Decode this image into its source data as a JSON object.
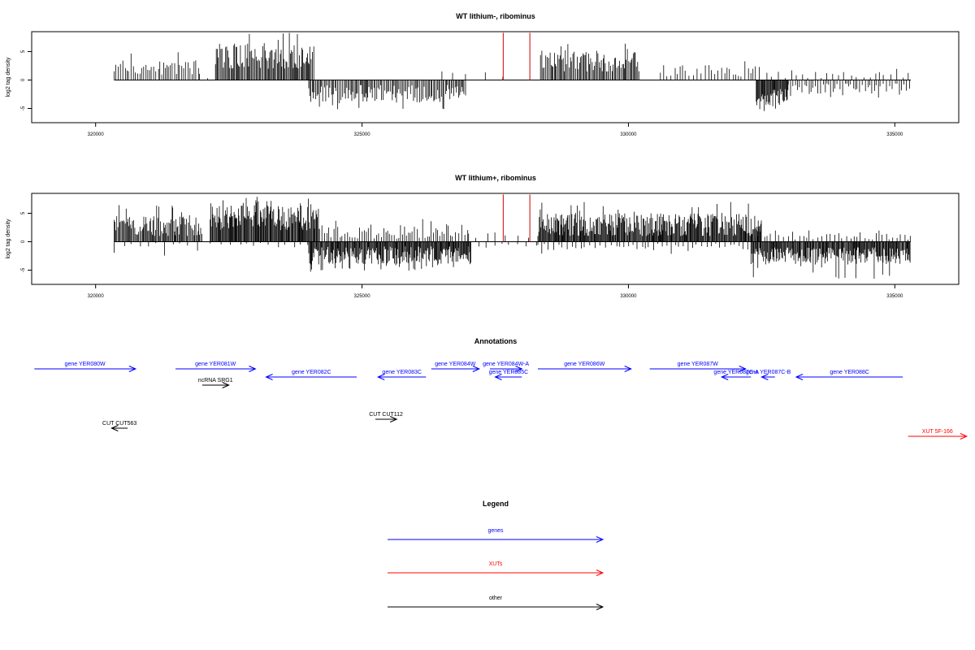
{
  "colors": {
    "gene": "#0000ff",
    "xut": "#ff0000",
    "other": "#000000",
    "signal": "#000000",
    "marker": "#cc0000"
  },
  "chart_data": [
    {
      "type": "bar",
      "title": "WT lithium-, ribominus",
      "ylabel": "log2 tag density",
      "xlim": [
        318800,
        336200
      ],
      "ylim": [
        -7.5,
        8.5
      ],
      "xticks": [
        320000,
        325000,
        330000,
        335000
      ],
      "yticks": [
        -5,
        0,
        5
      ],
      "segments": [
        {
          "from": 320350,
          "to": 321950,
          "sign": 1,
          "step": 38,
          "min": 0.8,
          "max": 3.5,
          "peak": 5.8
        },
        {
          "from": 321950,
          "to": 322200,
          "sign": 1,
          "step": 120,
          "min": 0.3,
          "max": 1.2,
          "peak": 1.2
        },
        {
          "from": 322250,
          "to": 324100,
          "sign": 1,
          "step": 20,
          "min": 2.0,
          "max": 6.5,
          "peak": 8.3
        },
        {
          "from": 324000,
          "to": 326950,
          "sign": -1,
          "step": 25,
          "min": 0.8,
          "max": 4.0,
          "peak": 5.2
        },
        {
          "from": 326500,
          "to": 327700,
          "sign": 1,
          "step": 300,
          "min": 0.3,
          "max": 1.5,
          "peak": 1.5
        },
        {
          "from": 328350,
          "to": 330200,
          "sign": 1,
          "step": 22,
          "min": 1.5,
          "max": 5.0,
          "peak": 6.5
        },
        {
          "from": 330600,
          "to": 332500,
          "sign": 1,
          "step": 60,
          "min": 0.5,
          "max": 2.8,
          "peak": 3.6
        },
        {
          "from": 332400,
          "to": 333000,
          "sign": -1,
          "step": 15,
          "min": 1.5,
          "max": 4.5,
          "peak": 5.6
        },
        {
          "from": 333000,
          "to": 335300,
          "sign": -1,
          "step": 45,
          "min": 0.5,
          "max": 2.5,
          "peak": 3.2
        },
        {
          "from": 332600,
          "to": 335300,
          "sign": 1,
          "step": 110,
          "min": 0.3,
          "max": 1.5,
          "peak": 2.0
        }
      ],
      "markers": [
        327650,
        328150
      ],
      "marker_height": 8.3
    },
    {
      "type": "bar",
      "title": "WT lithium+, ribominus",
      "ylabel": "log2 tag density",
      "xlim": [
        318800,
        336200
      ],
      "ylim": [
        -7.5,
        8.5
      ],
      "xticks": [
        320000,
        325000,
        330000,
        335000
      ],
      "yticks": [
        -5,
        0,
        5
      ],
      "segments": [
        {
          "from": 320350,
          "to": 322000,
          "sign": 1,
          "step": 18,
          "min": 1.0,
          "max": 4.5,
          "peak": 6.5
        },
        {
          "from": 320350,
          "to": 322000,
          "sign": -1,
          "step": 140,
          "min": 0.2,
          "max": 1.0,
          "peak": 2.5
        },
        {
          "from": 322150,
          "to": 324200,
          "sign": 1,
          "step": 14,
          "min": 2.0,
          "max": 6.5,
          "peak": 8.2
        },
        {
          "from": 322150,
          "to": 324200,
          "sign": -1,
          "step": 150,
          "min": 0.2,
          "max": 1.0,
          "peak": 2.4
        },
        {
          "from": 324000,
          "to": 327050,
          "sign": -1,
          "step": 14,
          "min": 0.8,
          "max": 4.0,
          "peak": 5.3
        },
        {
          "from": 324200,
          "to": 327000,
          "sign": 1,
          "step": 45,
          "min": 0.5,
          "max": 3.0,
          "peak": 4.0
        },
        {
          "from": 327000,
          "to": 328200,
          "sign": 1,
          "step": 200,
          "min": 0.3,
          "max": 1.5,
          "peak": 2.2
        },
        {
          "from": 327000,
          "to": 328300,
          "sign": -1,
          "step": 180,
          "min": 0.2,
          "max": 1.0,
          "peak": 1.3
        },
        {
          "from": 328300,
          "to": 332500,
          "sign": 1,
          "step": 14,
          "min": 1.0,
          "max": 5.0,
          "peak": 7.0
        },
        {
          "from": 328300,
          "to": 332300,
          "sign": -1,
          "step": 80,
          "min": 0.3,
          "max": 1.5,
          "peak": 2.4
        },
        {
          "from": 332300,
          "to": 335300,
          "sign": -1,
          "step": 14,
          "min": 1.0,
          "max": 4.0,
          "peak": 6.8
        },
        {
          "from": 332300,
          "to": 335300,
          "sign": 1,
          "step": 70,
          "min": 0.3,
          "max": 1.5,
          "peak": 2.0
        }
      ],
      "markers": [
        327650,
        328150
      ],
      "marker_height": 8.3
    },
    {
      "type": "annotation-track",
      "title": "Annotations",
      "features": [
        {
          "label": "gene YER080W",
          "start": 318850,
          "end": 320750,
          "strand": "+",
          "row": 0,
          "kind": "gene"
        },
        {
          "label": "gene YER081W",
          "start": 321500,
          "end": 323000,
          "strand": "+",
          "row": 0,
          "kind": "gene"
        },
        {
          "label": "gene YER082C",
          "start": 323200,
          "end": 324900,
          "strand": "-",
          "row": 1,
          "kind": "gene"
        },
        {
          "label": "gene YER083C",
          "start": 325300,
          "end": 326200,
          "strand": "-",
          "row": 1,
          "kind": "gene"
        },
        {
          "label": "gene YER084W",
          "start": 326300,
          "end": 327200,
          "strand": "+",
          "row": 0,
          "kind": "gene"
        },
        {
          "label": "gene YER084W-A",
          "start": 327400,
          "end": 328000,
          "strand": "+",
          "row": 0,
          "kind": "gene"
        },
        {
          "label": "gene YER085C",
          "start": 327500,
          "end": 328000,
          "strand": "-",
          "row": 1,
          "kind": "gene"
        },
        {
          "label": "gene YER086W",
          "start": 328300,
          "end": 330050,
          "strand": "+",
          "row": 0,
          "kind": "gene"
        },
        {
          "label": "gene YER087W",
          "start": 330400,
          "end": 332200,
          "strand": "+",
          "row": 0,
          "kind": "gene"
        },
        {
          "label": "gene YER087C-A",
          "start": 331750,
          "end": 332300,
          "strand": "-",
          "row": 1,
          "kind": "gene"
        },
        {
          "label": "gene YER087C-B",
          "start": 332500,
          "end": 332750,
          "strand": "-",
          "row": 1,
          "kind": "gene"
        },
        {
          "label": "gene YER088C",
          "start": 333150,
          "end": 335150,
          "strand": "-",
          "row": 1,
          "kind": "gene"
        },
        {
          "label": "ncRNA SRG1",
          "start": 322000,
          "end": 322500,
          "strand": "+",
          "row": 2,
          "kind": "other"
        },
        {
          "label": "CUT CUT563",
          "start": 320300,
          "end": 320600,
          "strand": "-",
          "row": 4,
          "kind": "other"
        },
        {
          "label": "CUT CUT112",
          "start": 325250,
          "end": 325650,
          "strand": "+",
          "row": 3,
          "kind": "other"
        },
        {
          "label": "XUT 5F-166",
          "start": 335250,
          "end": 336350,
          "strand": "+",
          "row": 5,
          "kind": "xut"
        }
      ]
    },
    {
      "type": "legend",
      "title": "Legend",
      "entries": [
        {
          "label": "genes",
          "kind": "gene"
        },
        {
          "label": "XUTs",
          "kind": "xut"
        },
        {
          "label": "other",
          "kind": "other"
        }
      ]
    }
  ]
}
